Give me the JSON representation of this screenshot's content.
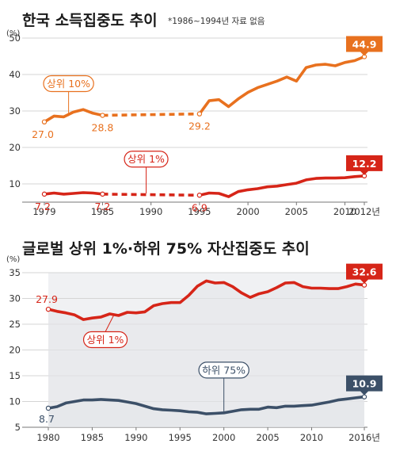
{
  "chart_data": [
    {
      "type": "line",
      "title": "한국 소득집중도 추이",
      "note": "*1986~1994년 자료 없음",
      "unit": "(%)",
      "xlim": [
        1979,
        2012
      ],
      "ylim": [
        5,
        50
      ],
      "yticks": [
        "10",
        "20",
        "30",
        "40",
        "50"
      ],
      "xticks": [
        "1979",
        "1985",
        "1990",
        "1995",
        "2000",
        "2005",
        "2010",
        "2012년"
      ],
      "xtick_values": [
        1979,
        1985,
        1990,
        1995,
        2000,
        2005,
        2010,
        2012
      ],
      "colors": {
        "top10": "#e8711f",
        "top1": "#d62518"
      },
      "series": [
        {
          "name": "상위 10%",
          "color": "#e8711f",
          "segments": [
            [
              [
                1979,
                27.0
              ],
              [
                1980,
                28.6
              ],
              [
                1981,
                28.4
              ],
              [
                1982,
                29.7
              ],
              [
                1983,
                30.4
              ],
              [
                1984,
                29.4
              ],
              [
                1985,
                28.8
              ]
            ],
            [
              [
                1995,
                29.2
              ],
              [
                1996,
                32.8
              ],
              [
                1997,
                33.1
              ],
              [
                1998,
                31.2
              ],
              [
                1999,
                33.3
              ],
              [
                2000,
                35.1
              ],
              [
                2001,
                36.4
              ],
              [
                2002,
                37.3
              ],
              [
                2003,
                38.2
              ],
              [
                2004,
                39.3
              ],
              [
                2005,
                38.2
              ],
              [
                2006,
                41.9
              ],
              [
                2007,
                42.6
              ],
              [
                2008,
                42.8
              ],
              [
                2009,
                42.4
              ],
              [
                2010,
                43.3
              ],
              [
                2011,
                43.8
              ],
              [
                2012,
                44.9
              ]
            ]
          ],
          "gap": [
            [
              1985,
              28.8
            ],
            [
              1995,
              29.2
            ]
          ],
          "labels": [
            {
              "x": 1979,
              "y": 27.0,
              "text": "27.0"
            },
            {
              "x": 1985,
              "y": 28.8,
              "text": "28.8"
            },
            {
              "x": 1995,
              "y": 29.2,
              "text": "29.2"
            },
            {
              "x": 2012,
              "y": 44.9,
              "text": "44.9"
            }
          ],
          "legend_text": "상위 10%"
        },
        {
          "name": "상위 1%",
          "color": "#d62518",
          "segments": [
            [
              [
                1979,
                7.2
              ],
              [
                1980,
                7.5
              ],
              [
                1981,
                7.2
              ],
              [
                1982,
                7.4
              ],
              [
                1983,
                7.6
              ],
              [
                1984,
                7.5
              ],
              [
                1985,
                7.2
              ]
            ],
            [
              [
                1995,
                6.9
              ],
              [
                1996,
                7.5
              ],
              [
                1997,
                7.4
              ],
              [
                1998,
                6.5
              ],
              [
                1999,
                7.9
              ],
              [
                2000,
                8.4
              ],
              [
                2001,
                8.7
              ],
              [
                2002,
                9.2
              ],
              [
                2003,
                9.4
              ],
              [
                2004,
                9.8
              ],
              [
                2005,
                10.2
              ],
              [
                2006,
                11.1
              ],
              [
                2007,
                11.5
              ],
              [
                2008,
                11.6
              ],
              [
                2009,
                11.6
              ],
              [
                2010,
                11.7
              ],
              [
                2011,
                12.0
              ],
              [
                2012,
                12.2
              ]
            ]
          ],
          "gap": [
            [
              1985,
              7.2
            ],
            [
              1995,
              6.9
            ]
          ],
          "labels": [
            {
              "x": 1979,
              "y": 7.2,
              "text": "7.2"
            },
            {
              "x": 1985,
              "y": 7.2,
              "text": "7.2"
            },
            {
              "x": 1995,
              "y": 6.9,
              "text": "6.9"
            },
            {
              "x": 2012,
              "y": 12.2,
              "text": "12.2"
            }
          ],
          "legend_text": "상위 1%"
        }
      ]
    },
    {
      "type": "line",
      "title": "글로벌 상위 1%·하위 75% 자산집중도 추이",
      "unit": "(%)",
      "xlim": [
        1980,
        2016
      ],
      "ylim": [
        5,
        35
      ],
      "yticks": [
        "5",
        "10",
        "15",
        "20",
        "25",
        "30",
        "35"
      ],
      "xticks": [
        "1980",
        "1985",
        "1990",
        "1995",
        "2000",
        "2005",
        "2010",
        "2016년"
      ],
      "xtick_values": [
        1980,
        1985,
        1990,
        1995,
        2000,
        2005,
        2010,
        2016
      ],
      "colors": {
        "top1": "#d62518",
        "bottom75": "#3c5068"
      },
      "series": [
        {
          "name": "상위 1%",
          "color": "#d62518",
          "points": [
            [
              1980,
              27.9
            ],
            [
              1981,
              27.5
            ],
            [
              1982,
              27.2
            ],
            [
              1983,
              26.8
            ],
            [
              1984,
              25.9
            ],
            [
              1985,
              26.2
            ],
            [
              1986,
              26.4
            ],
            [
              1987,
              27.0
            ],
            [
              1988,
              26.7
            ],
            [
              1989,
              27.3
            ],
            [
              1990,
              27.2
            ],
            [
              1991,
              27.4
            ],
            [
              1992,
              28.6
            ],
            [
              1993,
              29.0
            ],
            [
              1994,
              29.2
            ],
            [
              1995,
              29.2
            ],
            [
              1996,
              30.6
            ],
            [
              1997,
              32.4
            ],
            [
              1998,
              33.4
            ],
            [
              1999,
              33.0
            ],
            [
              2000,
              33.1
            ],
            [
              2001,
              32.3
            ],
            [
              2002,
              31.1
            ],
            [
              2003,
              30.2
            ],
            [
              2004,
              30.9
            ],
            [
              2005,
              31.3
            ],
            [
              2006,
              32.1
            ],
            [
              2007,
              33.0
            ],
            [
              2008,
              33.1
            ],
            [
              2009,
              32.3
            ],
            [
              2010,
              32.0
            ],
            [
              2011,
              32.0
            ],
            [
              2012,
              31.9
            ],
            [
              2013,
              31.9
            ],
            [
              2014,
              32.3
            ],
            [
              2015,
              32.8
            ],
            [
              2016,
              32.6
            ]
          ],
          "labels": [
            {
              "x": 1980,
              "y": 27.9,
              "text": "27.9"
            },
            {
              "x": 2016,
              "y": 32.6,
              "text": "32.6"
            }
          ],
          "legend_text": "상위 1%"
        },
        {
          "name": "하위 75%",
          "color": "#3c5068",
          "points": [
            [
              1980,
              8.7
            ],
            [
              1981,
              9.0
            ],
            [
              1982,
              9.7
            ],
            [
              1983,
              10.0
            ],
            [
              1984,
              10.3
            ],
            [
              1985,
              10.3
            ],
            [
              1986,
              10.4
            ],
            [
              1987,
              10.3
            ],
            [
              1988,
              10.2
            ],
            [
              1989,
              9.9
            ],
            [
              1990,
              9.6
            ],
            [
              1991,
              9.1
            ],
            [
              1992,
              8.6
            ],
            [
              1993,
              8.4
            ],
            [
              1994,
              8.3
            ],
            [
              1995,
              8.2
            ],
            [
              1996,
              8.0
            ],
            [
              1997,
              7.9
            ],
            [
              1998,
              7.6
            ],
            [
              1999,
              7.7
            ],
            [
              2000,
              7.8
            ],
            [
              2001,
              8.1
            ],
            [
              2002,
              8.4
            ],
            [
              2003,
              8.5
            ],
            [
              2004,
              8.5
            ],
            [
              2005,
              8.9
            ],
            [
              2006,
              8.8
            ],
            [
              2007,
              9.1
            ],
            [
              2008,
              9.1
            ],
            [
              2009,
              9.2
            ],
            [
              2010,
              9.3
            ],
            [
              2011,
              9.6
            ],
            [
              2012,
              9.9
            ],
            [
              2013,
              10.3
            ],
            [
              2014,
              10.5
            ],
            [
              2015,
              10.7
            ],
            [
              2016,
              10.9
            ]
          ],
          "labels": [
            {
              "x": 1980,
              "y": 8.7,
              "text": "8.7"
            },
            {
              "x": 2016,
              "y": 10.9,
              "text": "10.9"
            }
          ],
          "legend_text": "하위 75%"
        }
      ]
    }
  ]
}
